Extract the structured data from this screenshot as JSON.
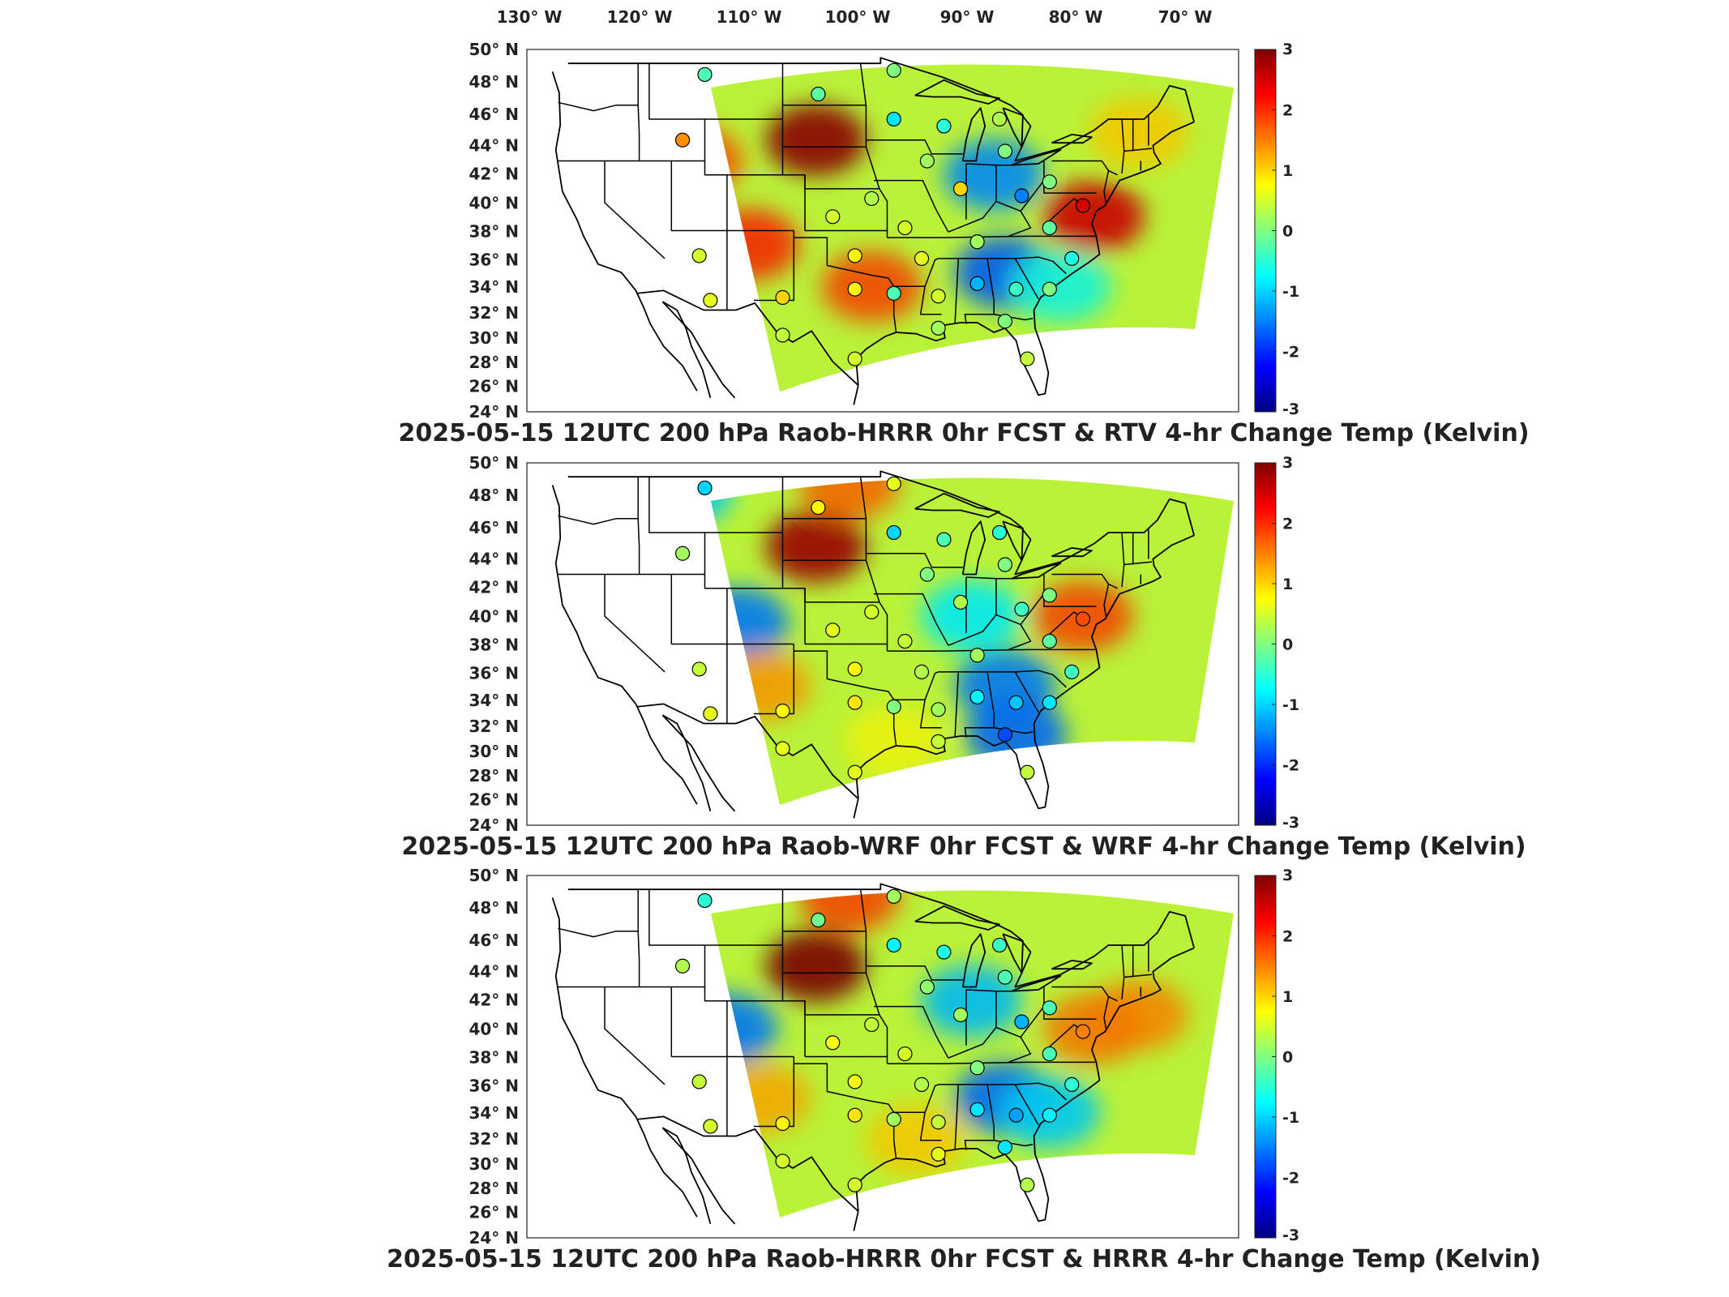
{
  "lon_labels": [
    "130° W",
    "120° W",
    "110° W",
    "100° W",
    "90° W",
    "80° W",
    "70° W"
  ],
  "lat_labels": [
    "50° N",
    "48° N",
    "46° N",
    "44° N",
    "42° N",
    "40° N",
    "38° N",
    "36° N",
    "34° N",
    "32° N",
    "30° N",
    "28° N",
    "26° N",
    "24° N"
  ],
  "colorbar": {
    "ticks": [
      "3",
      "2",
      "1",
      "0",
      "-1",
      "-2",
      "-3"
    ],
    "range": [
      -3,
      3
    ],
    "colormap": [
      "#00007f",
      "#0000ff",
      "#0080ff",
      "#00ffff",
      "#80ff80",
      "#ffff00",
      "#ff8000",
      "#ff0000",
      "#7f0000"
    ]
  },
  "panels": [
    {
      "title": "2025-05-15 12UTC 200 hPa Raob-HRRR 0hr FCST & RTV 4-hr Change Temp (Kelvin)",
      "field_blobs": [
        {
          "lon": -101,
          "lat": 43.5,
          "value": 2.9
        },
        {
          "lon": -107,
          "lat": 36,
          "value": 2.0
        },
        {
          "lon": -112,
          "lat": 42,
          "value": 1.7
        },
        {
          "lon": -96,
          "lat": 33,
          "value": 1.8
        },
        {
          "lon": -85,
          "lat": 41,
          "value": -1.4
        },
        {
          "lon": -84,
          "lat": 34,
          "value": -1.7
        },
        {
          "lon": -76,
          "lat": 38,
          "value": 2.5
        },
        {
          "lon": -79,
          "lat": 33,
          "value": -0.6
        },
        {
          "lon": -72,
          "lat": 44,
          "value": 1.0
        }
      ],
      "stations": [
        {
          "lon": -111,
          "lat": 48.2,
          "value": -0.3
        },
        {
          "lon": -100.8,
          "lat": 46.8,
          "value": -0.2
        },
        {
          "lon": -94,
          "lat": 48.5,
          "value": 0.0
        },
        {
          "lon": -94,
          "lat": 45,
          "value": -0.9
        },
        {
          "lon": -113,
          "lat": 43.5,
          "value": 1.4
        },
        {
          "lon": -89.5,
          "lat": 44.5,
          "value": -0.5
        },
        {
          "lon": -84.5,
          "lat": 45,
          "value": 0.3
        },
        {
          "lon": -84,
          "lat": 42.7,
          "value": 0.0
        },
        {
          "lon": -91,
          "lat": 42,
          "value": 0.2
        },
        {
          "lon": -88,
          "lat": 40,
          "value": 1.0
        },
        {
          "lon": -82.5,
          "lat": 39.5,
          "value": -1.5
        },
        {
          "lon": -80,
          "lat": 40.5,
          "value": 0.0
        },
        {
          "lon": -77,
          "lat": 38.8,
          "value": 2.5
        },
        {
          "lon": -99.5,
          "lat": 38,
          "value": 0.5
        },
        {
          "lon": -96,
          "lat": 39.3,
          "value": 0.3
        },
        {
          "lon": -93,
          "lat": 37.2,
          "value": 0.5
        },
        {
          "lon": -91.5,
          "lat": 35,
          "value": 0.6
        },
        {
          "lon": -86.5,
          "lat": 36.2,
          "value": 0.2
        },
        {
          "lon": -80,
          "lat": 37.2,
          "value": -0.2
        },
        {
          "lon": -78,
          "lat": 35,
          "value": -0.6
        },
        {
          "lon": -111.5,
          "lat": 35.2,
          "value": 0.5
        },
        {
          "lon": -104,
          "lat": 32.2,
          "value": 1.0
        },
        {
          "lon": -97.5,
          "lat": 35.2,
          "value": 0.8
        },
        {
          "lon": -97.5,
          "lat": 32.8,
          "value": 0.8
        },
        {
          "lon": -94,
          "lat": 32.5,
          "value": -0.3
        },
        {
          "lon": -90,
          "lat": 32.3,
          "value": 0.5
        },
        {
          "lon": -86.5,
          "lat": 33.2,
          "value": -1.2
        },
        {
          "lon": -83,
          "lat": 32.8,
          "value": -0.4
        },
        {
          "lon": -80,
          "lat": 32.8,
          "value": 0.0
        },
        {
          "lon": -110.5,
          "lat": 32,
          "value": 0.6
        },
        {
          "lon": -104,
          "lat": 29.5,
          "value": 0.4
        },
        {
          "lon": -97.5,
          "lat": 27.8,
          "value": 0.5
        },
        {
          "lon": -90,
          "lat": 30,
          "value": 0.2
        },
        {
          "lon": -84,
          "lat": 30.5,
          "value": 0.0
        },
        {
          "lon": -82,
          "lat": 27.8,
          "value": 0.4
        }
      ]
    },
    {
      "title": "2025-05-15 12UTC 200 hPa Raob-WRF 0hr FCST & WRF 4-hr Change Temp (Kelvin)",
      "field_blobs": [
        {
          "lon": -101,
          "lat": 44,
          "value": 2.8
        },
        {
          "lon": -98,
          "lat": 48.5,
          "value": 1.6
        },
        {
          "lon": -108,
          "lat": 38.5,
          "value": -1.5
        },
        {
          "lon": -113,
          "lat": 48,
          "value": -1.0
        },
        {
          "lon": -106,
          "lat": 34,
          "value": 1.3
        },
        {
          "lon": -84,
          "lat": 34,
          "value": -1.5
        },
        {
          "lon": -83,
          "lat": 30.5,
          "value": -1.6
        },
        {
          "lon": -77,
          "lat": 39,
          "value": 1.8
        },
        {
          "lon": -87,
          "lat": 39,
          "value": -0.8
        },
        {
          "lon": -94,
          "lat": 30,
          "value": 0.7
        }
      ],
      "stations": [
        {
          "lon": -111,
          "lat": 48.2,
          "value": -1.0
        },
        {
          "lon": -100.8,
          "lat": 46.8,
          "value": 0.8
        },
        {
          "lon": -94,
          "lat": 48.5,
          "value": 0.6
        },
        {
          "lon": -94,
          "lat": 45,
          "value": -1.0
        },
        {
          "lon": -113,
          "lat": 43.5,
          "value": 0.2
        },
        {
          "lon": -89.5,
          "lat": 44.5,
          "value": -0.3
        },
        {
          "lon": -84.5,
          "lat": 45,
          "value": -0.5
        },
        {
          "lon": -84,
          "lat": 42.7,
          "value": 0.0
        },
        {
          "lon": -91,
          "lat": 42,
          "value": 0.0
        },
        {
          "lon": -88,
          "lat": 40,
          "value": 0.3
        },
        {
          "lon": -82.5,
          "lat": 39.5,
          "value": -0.4
        },
        {
          "lon": -80,
          "lat": 40.5,
          "value": 0.0
        },
        {
          "lon": -77,
          "lat": 38.8,
          "value": 1.8
        },
        {
          "lon": -99.5,
          "lat": 38,
          "value": 0.6
        },
        {
          "lon": -96,
          "lat": 39.3,
          "value": 0.5
        },
        {
          "lon": -93,
          "lat": 37.2,
          "value": 0.4
        },
        {
          "lon": -91.5,
          "lat": 35,
          "value": 0.3
        },
        {
          "lon": -86.5,
          "lat": 36.2,
          "value": 0.2
        },
        {
          "lon": -80,
          "lat": 37.2,
          "value": -0.2
        },
        {
          "lon": -78,
          "lat": 35,
          "value": -0.4
        },
        {
          "lon": -111.5,
          "lat": 35.2,
          "value": 0.4
        },
        {
          "lon": -104,
          "lat": 32.2,
          "value": 0.8
        },
        {
          "lon": -97.5,
          "lat": 35.2,
          "value": 0.8
        },
        {
          "lon": -97.5,
          "lat": 32.8,
          "value": 0.9
        },
        {
          "lon": -94,
          "lat": 32.5,
          "value": 0.0
        },
        {
          "lon": -90,
          "lat": 32.3,
          "value": 0.2
        },
        {
          "lon": -86.5,
          "lat": 33.2,
          "value": -0.8
        },
        {
          "lon": -83,
          "lat": 32.8,
          "value": -1.1
        },
        {
          "lon": -80,
          "lat": 32.8,
          "value": -0.9
        },
        {
          "lon": -110.5,
          "lat": 32,
          "value": 0.6
        },
        {
          "lon": -104,
          "lat": 29.5,
          "value": 0.6
        },
        {
          "lon": -97.5,
          "lat": 27.8,
          "value": 0.6
        },
        {
          "lon": -90,
          "lat": 30,
          "value": 0.4
        },
        {
          "lon": -84,
          "lat": 30.5,
          "value": -1.8
        },
        {
          "lon": -82,
          "lat": 27.8,
          "value": 0.4
        }
      ]
    },
    {
      "title": "2025-05-15 12UTC 200 hPa Raob-HRRR 0hr FCST & HRRR 4-hr Change Temp (Kelvin)",
      "field_blobs": [
        {
          "lon": -101,
          "lat": 43.5,
          "value": 3.0
        },
        {
          "lon": -98,
          "lat": 48.5,
          "value": 1.8
        },
        {
          "lon": -109,
          "lat": 39,
          "value": -1.5
        },
        {
          "lon": -106,
          "lat": 34,
          "value": 1.2
        },
        {
          "lon": -84,
          "lat": 34,
          "value": -1.6
        },
        {
          "lon": -80,
          "lat": 33,
          "value": -1.0
        },
        {
          "lon": -87,
          "lat": 41,
          "value": -1.1
        },
        {
          "lon": -72,
          "lat": 40,
          "value": 1.4
        },
        {
          "lon": -92,
          "lat": 31,
          "value": 1.0
        },
        {
          "lon": -76,
          "lat": 39,
          "value": 1.5
        }
      ],
      "stations": [
        {
          "lon": -111,
          "lat": 48.2,
          "value": -0.5
        },
        {
          "lon": -100.8,
          "lat": 46.8,
          "value": -0.1
        },
        {
          "lon": -94,
          "lat": 48.5,
          "value": 0.2
        },
        {
          "lon": -94,
          "lat": 45,
          "value": -0.8
        },
        {
          "lon": -113,
          "lat": 43.5,
          "value": 0.3
        },
        {
          "lon": -89.5,
          "lat": 44.5,
          "value": -0.6
        },
        {
          "lon": -84.5,
          "lat": 45,
          "value": -0.4
        },
        {
          "lon": -84,
          "lat": 42.7,
          "value": -0.3
        },
        {
          "lon": -91,
          "lat": 42,
          "value": 0.1
        },
        {
          "lon": -88,
          "lat": 40,
          "value": 0.2
        },
        {
          "lon": -82.5,
          "lat": 39.5,
          "value": -1.2
        },
        {
          "lon": -80,
          "lat": 40.5,
          "value": -0.3
        },
        {
          "lon": -77,
          "lat": 38.8,
          "value": 1.5
        },
        {
          "lon": -99.5,
          "lat": 38,
          "value": 0.7
        },
        {
          "lon": -96,
          "lat": 39.3,
          "value": 0.4
        },
        {
          "lon": -93,
          "lat": 37.2,
          "value": 0.5
        },
        {
          "lon": -91.5,
          "lat": 35,
          "value": 0.3
        },
        {
          "lon": -86.5,
          "lat": 36.2,
          "value": 0.0
        },
        {
          "lon": -80,
          "lat": 37.2,
          "value": -0.3
        },
        {
          "lon": -78,
          "lat": 35,
          "value": -0.5
        },
        {
          "lon": -111.5,
          "lat": 35.2,
          "value": 0.4
        },
        {
          "lon": -104,
          "lat": 32.2,
          "value": 0.8
        },
        {
          "lon": -97.5,
          "lat": 35.2,
          "value": 0.7
        },
        {
          "lon": -97.5,
          "lat": 32.8,
          "value": 0.9
        },
        {
          "lon": -94,
          "lat": 32.5,
          "value": 0.2
        },
        {
          "lon": -90,
          "lat": 32.3,
          "value": 0.4
        },
        {
          "lon": -86.5,
          "lat": 33.2,
          "value": -0.9
        },
        {
          "lon": -83,
          "lat": 32.8,
          "value": -1.3
        },
        {
          "lon": -80,
          "lat": 32.8,
          "value": -0.8
        },
        {
          "lon": -110.5,
          "lat": 32,
          "value": 0.5
        },
        {
          "lon": -104,
          "lat": 29.5,
          "value": 0.5
        },
        {
          "lon": -97.5,
          "lat": 27.8,
          "value": 0.5
        },
        {
          "lon": -90,
          "lat": 30,
          "value": 0.6
        },
        {
          "lon": -84,
          "lat": 30.5,
          "value": -0.9
        },
        {
          "lon": -82,
          "lat": 27.8,
          "value": 0.3
        }
      ]
    }
  ]
}
